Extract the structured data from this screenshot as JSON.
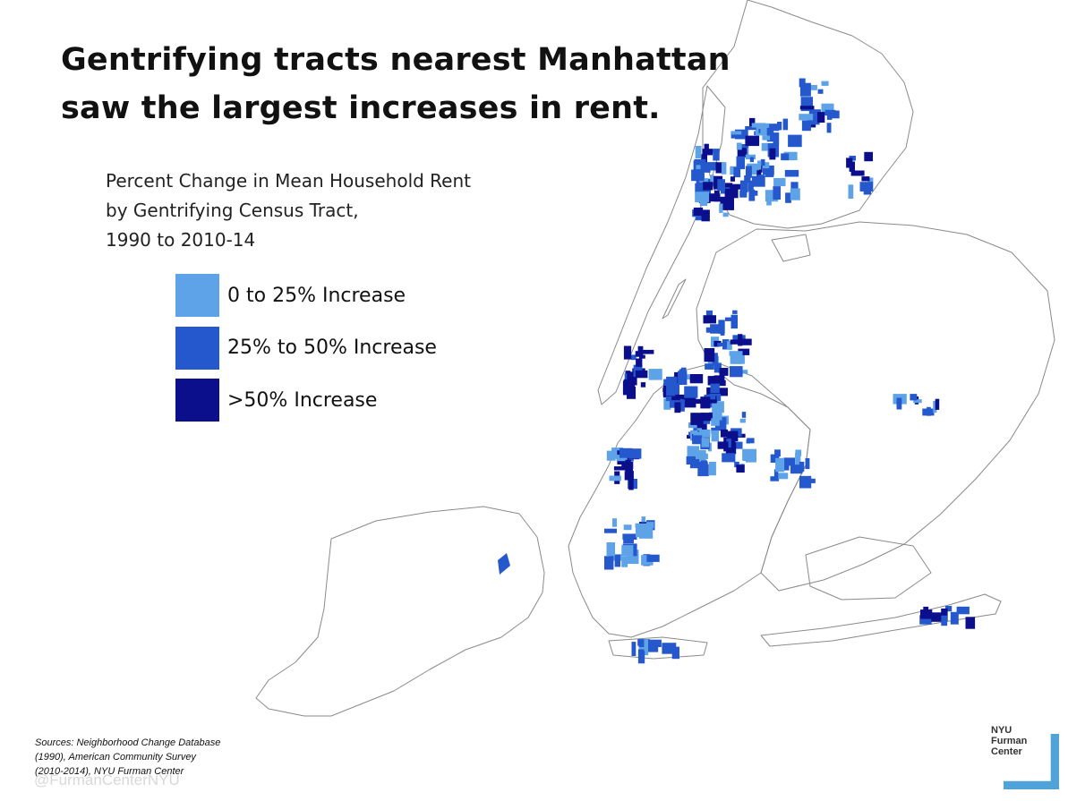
{
  "title_lines": [
    "Gentrifying tracts nearest Manhattan",
    "saw the largest increases in rent."
  ],
  "subtitle_lines": [
    "Percent Change in Mean Household Rent",
    "by Gentrifying Census Tract,",
    "1990 to 2010-14"
  ],
  "colors": {
    "low": "#5ea2e8",
    "mid": "#2458cc",
    "high": "#0b0f8c",
    "outline": "#8a8a8a",
    "logo_accent": "#4fa3d9"
  },
  "legend": [
    {
      "label": "0 to 25% Increase",
      "color": "#5ea2e8"
    },
    {
      "label": "25% to 50% Increase",
      "color": "#2458cc"
    },
    {
      "label": ">50% Increase",
      "color": "#0b0f8c"
    }
  ],
  "sources_lines": [
    "Sources: Neighborhood Change Database",
    "(1990), American Community Survey",
    "(2010-2014), NYU Furman Center"
  ],
  "handle": "@FurmanCenterNYU",
  "logo_lines": [
    "NYU",
    "Furman",
    "Center"
  ]
}
